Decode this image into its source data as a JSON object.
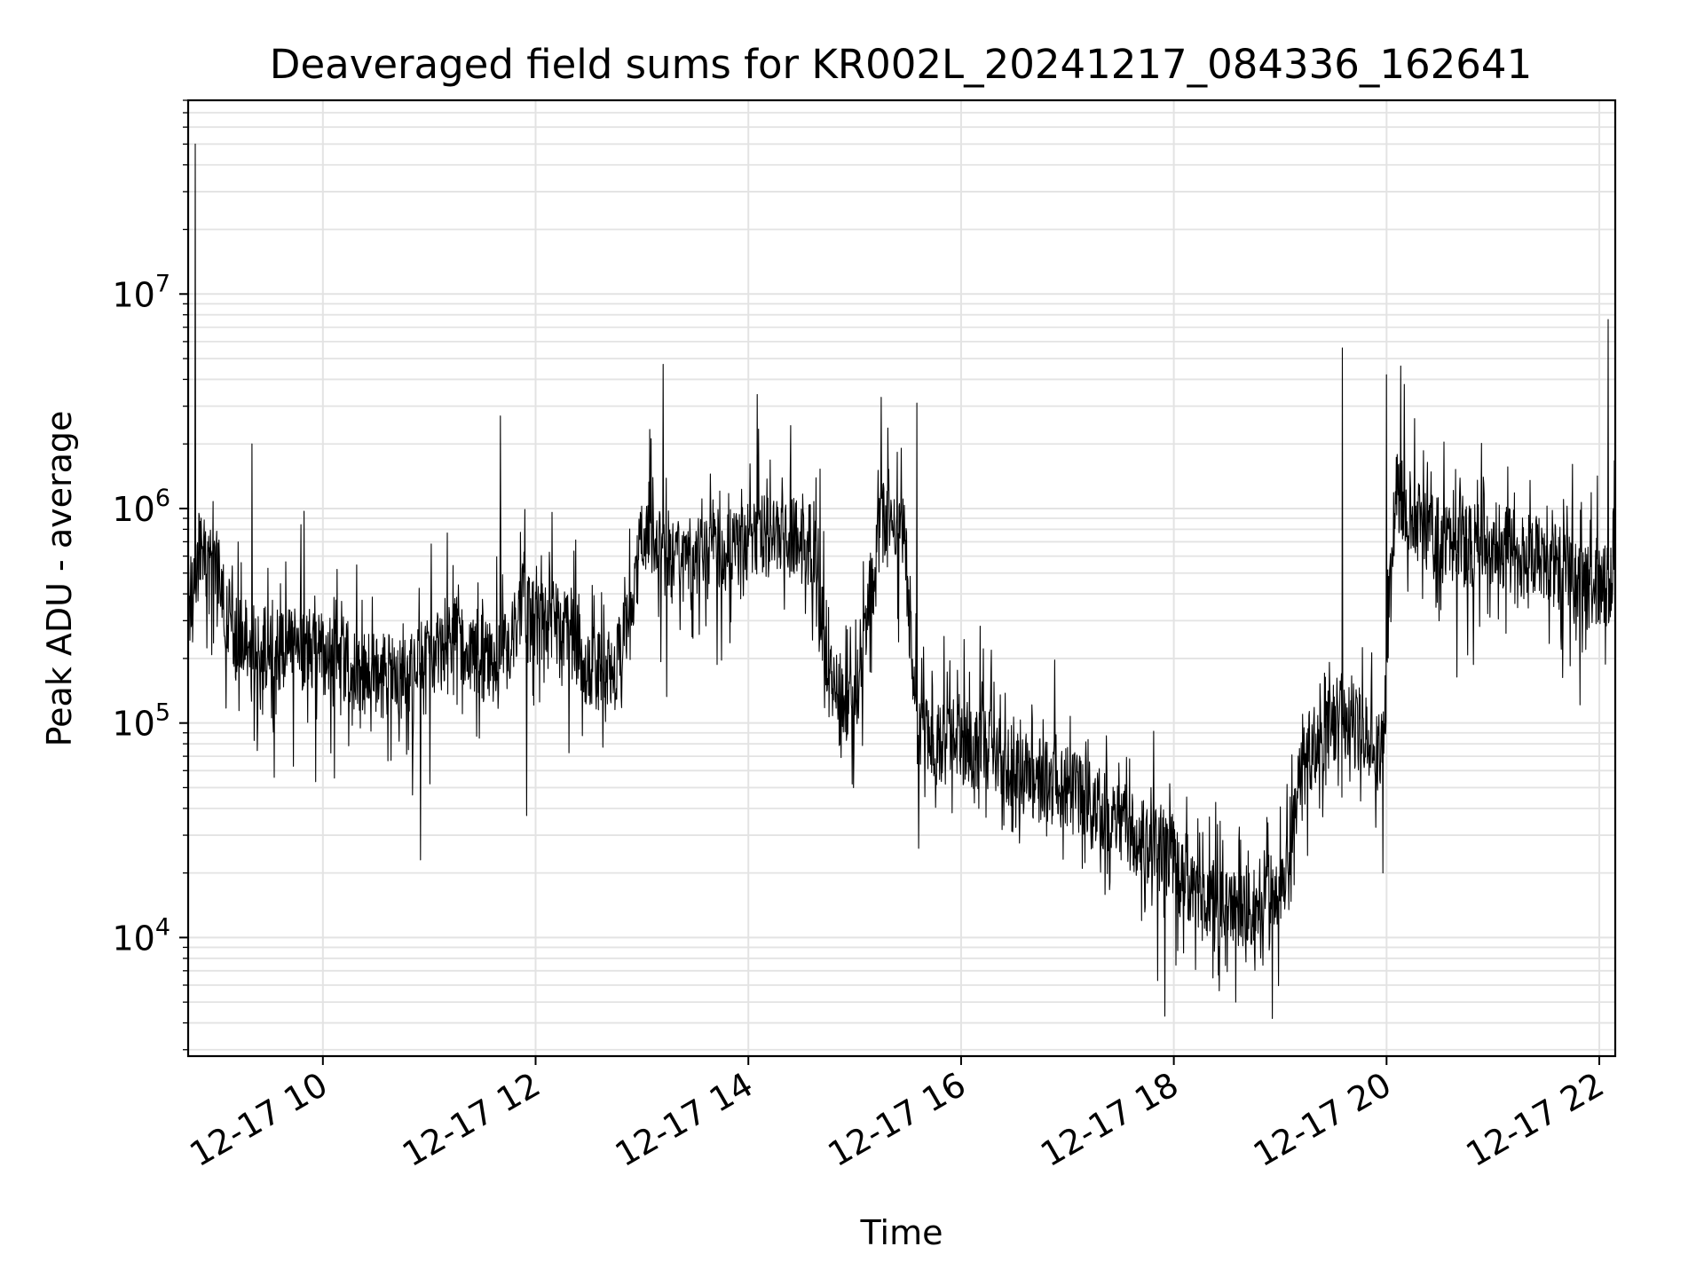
{
  "chart_data": {
    "type": "line",
    "title": "Deaveraged field sums for KR002L_20241217_084336_162641",
    "xlabel": "Time",
    "ylabel": "Peak ADU - average",
    "yscale": "log",
    "ylim": [
      2800,
      80000000
    ],
    "xlim": [
      "2024-12-17 08:44",
      "2024-12-17 22:09"
    ],
    "grid": true,
    "x_tick_labels": [
      "12-17 10",
      "12-17 12",
      "12-17 14",
      "12-17 16",
      "12-17 18",
      "12-17 20",
      "12-17 22"
    ],
    "x_ticks": [
      "2024-12-17 10:00",
      "2024-12-17 12:00",
      "2024-12-17 14:00",
      "2024-12-17 16:00",
      "2024-12-17 18:00",
      "2024-12-17 20:00",
      "2024-12-17 22:00"
    ],
    "y_tick_labels": [
      {
        "base": "10",
        "exp": "4",
        "value": 10000
      },
      {
        "base": "10",
        "exp": "5",
        "value": 100000
      },
      {
        "base": "10",
        "exp": "6",
        "value": 1000000
      },
      {
        "base": "10",
        "exp": "7",
        "value": 10000000
      }
    ],
    "series": [
      {
        "color": "#000000",
        "x": [
          "2024-12-17 08:44",
          "2024-12-17 08:50",
          "2024-12-17 09:00",
          "2024-12-17 09:10",
          "2024-12-17 09:20",
          "2024-12-17 09:30",
          "2024-12-17 09:45",
          "2024-12-17 10:00",
          "2024-12-17 10:15",
          "2024-12-17 10:30",
          "2024-12-17 10:45",
          "2024-12-17 11:00",
          "2024-12-17 11:15",
          "2024-12-17 11:30",
          "2024-12-17 11:40",
          "2024-12-17 11:52",
          "2024-12-17 12:00",
          "2024-12-17 12:15",
          "2024-12-17 12:30",
          "2024-12-17 12:45",
          "2024-12-17 13:00",
          "2024-12-17 13:15",
          "2024-12-17 13:30",
          "2024-12-17 13:45",
          "2024-12-17 14:00",
          "2024-12-17 14:15",
          "2024-12-17 14:30",
          "2024-12-17 14:38",
          "2024-12-17 14:45",
          "2024-12-17 15:00",
          "2024-12-17 15:15",
          "2024-12-17 15:28",
          "2024-12-17 15:35",
          "2024-12-17 15:45",
          "2024-12-17 16:00",
          "2024-12-17 16:15",
          "2024-12-17 16:30",
          "2024-12-17 16:45",
          "2024-12-17 17:00",
          "2024-12-17 17:15",
          "2024-12-17 17:30",
          "2024-12-17 17:45",
          "2024-12-17 18:00",
          "2024-12-17 18:15",
          "2024-12-17 18:30",
          "2024-12-17 18:45",
          "2024-12-17 19:00",
          "2024-12-17 19:15",
          "2024-12-17 19:25",
          "2024-12-17 19:35",
          "2024-12-17 19:45",
          "2024-12-17 19:58",
          "2024-12-17 20:05",
          "2024-12-17 20:15",
          "2024-12-17 20:30",
          "2024-12-17 20:45",
          "2024-12-17 21:00",
          "2024-12-17 21:15",
          "2024-12-17 21:30",
          "2024-12-17 21:45",
          "2024-12-17 22:00",
          "2024-12-17 22:09"
        ],
        "y": [
          350000,
          600000,
          500000,
          250000,
          230000,
          220000,
          230000,
          210000,
          180000,
          170000,
          160000,
          200000,
          250000,
          200000,
          180000,
          350000,
          280000,
          300000,
          180000,
          170000,
          700000,
          550000,
          600000,
          650000,
          700000,
          750000,
          700000,
          700000,
          150000,
          120000,
          900000,
          700000,
          100000,
          85000,
          80000,
          75000,
          60000,
          55000,
          50000,
          40000,
          35000,
          28000,
          25000,
          15000,
          14000,
          15000,
          18000,
          70000,
          90000,
          110000,
          90000,
          70000,
          1300000,
          900000,
          700000,
          650000,
          700000,
          600000,
          600000,
          450000,
          400000,
          500000
        ],
        "spikes": [
          {
            "x": "2024-12-17 08:48",
            "y": 50000000
          },
          {
            "x": "2024-12-17 09:20",
            "y": 2000000
          },
          {
            "x": "2024-12-17 10:55",
            "y": 23000
          },
          {
            "x": "2024-12-17 11:40",
            "y": 2700000
          },
          {
            "x": "2024-12-17 11:55",
            "y": 37000
          },
          {
            "x": "2024-12-17 13:12",
            "y": 4700000
          },
          {
            "x": "2024-12-17 14:05",
            "y": 3400000
          },
          {
            "x": "2024-12-17 15:15",
            "y": 3300000
          },
          {
            "x": "2024-12-17 15:35",
            "y": 3100000
          },
          {
            "x": "2024-12-17 17:55",
            "y": 4300
          },
          {
            "x": "2024-12-17 18:35",
            "y": 5000
          },
          {
            "x": "2024-12-17 19:35",
            "y": 5600000
          },
          {
            "x": "2024-12-17 19:58",
            "y": 20000
          },
          {
            "x": "2024-12-17 20:00",
            "y": 4200000
          },
          {
            "x": "2024-12-17 22:05",
            "y": 7600000
          }
        ]
      }
    ]
  }
}
